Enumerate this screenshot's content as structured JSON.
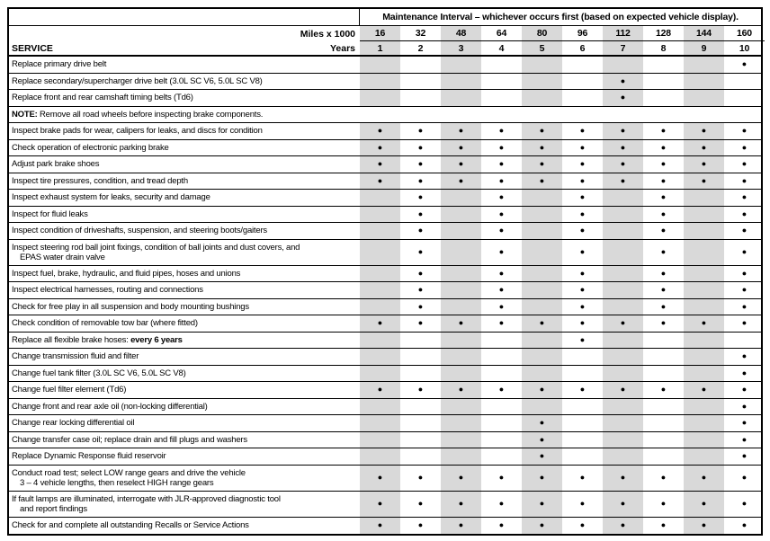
{
  "header": {
    "title": "Maintenance Interval – whichever occurs first (based on expected vehicle display).",
    "miles_label": "Miles x 1000",
    "years_label": "Years",
    "service_label": "SERVICE",
    "miles": [
      "16",
      "32",
      "48",
      "64",
      "80",
      "96",
      "112",
      "128",
      "144",
      "160"
    ],
    "years": [
      "1",
      "2",
      "3",
      "4",
      "5",
      "6",
      "7",
      "8",
      "9",
      "10"
    ]
  },
  "colors": {
    "shaded_column": "#d9d9d9",
    "border": "#000000",
    "bullet": "#000000"
  },
  "bullet_glyph": "●",
  "shaded_columns": [
    0,
    2,
    4,
    6,
    8
  ],
  "rows": [
    {
      "service": "Replace primary drive belt",
      "marks": [
        9
      ]
    },
    {
      "service": "Replace secondary/supercharger drive belt (3.0L SC V6, 5.0L SC V8)",
      "marks": [
        6
      ]
    },
    {
      "service": "Replace front and rear camshaft timing belts (Td6)",
      "marks": [
        6
      ]
    },
    {
      "note_label": "NOTE:",
      "note": " Remove all road wheels before inspecting brake components."
    },
    {
      "service": "Inspect brake pads for wear, calipers for leaks, and discs for condition",
      "marks": [
        0,
        1,
        2,
        3,
        4,
        5,
        6,
        7,
        8,
        9
      ]
    },
    {
      "service": "Check operation of electronic parking brake",
      "marks": [
        0,
        1,
        2,
        3,
        4,
        5,
        6,
        7,
        8,
        9
      ]
    },
    {
      "service": "Adjust park brake shoes",
      "marks": [
        0,
        1,
        2,
        3,
        4,
        5,
        6,
        7,
        8,
        9
      ]
    },
    {
      "service": "Inspect tire pressures, condition, and tread depth",
      "marks": [
        0,
        1,
        2,
        3,
        4,
        5,
        6,
        7,
        8,
        9
      ]
    },
    {
      "service": "Inspect exhaust system for leaks, security and damage",
      "marks": [
        1,
        3,
        5,
        7,
        9
      ]
    },
    {
      "service": "Inspect for fluid leaks",
      "marks": [
        1,
        3,
        5,
        7,
        9
      ]
    },
    {
      "service": "Inspect condition of driveshafts, suspension, and steering boots/gaiters",
      "marks": [
        1,
        3,
        5,
        7,
        9
      ]
    },
    {
      "service": "Inspect steering rod ball joint fixings, condition of ball joints and dust covers, and",
      "line2": "EPAS water drain valve",
      "marks": [
        1,
        3,
        5,
        7,
        9
      ]
    },
    {
      "service": "Inspect fuel, brake, hydraulic, and fluid pipes, hoses and unions",
      "marks": [
        1,
        3,
        5,
        7,
        9
      ]
    },
    {
      "service": "Inspect electrical harnesses, routing and connections",
      "marks": [
        1,
        3,
        5,
        7,
        9
      ]
    },
    {
      "service": "Check for free play in all suspension and body mounting bushings",
      "marks": [
        1,
        3,
        5,
        7,
        9
      ]
    },
    {
      "service": "Check condition of removable tow bar (where fitted)",
      "marks": [
        0,
        1,
        2,
        3,
        4,
        5,
        6,
        7,
        8,
        9
      ]
    },
    {
      "service": "Replace all flexible brake hoses: ",
      "bold": "every 6 years",
      "marks": [
        5
      ]
    },
    {
      "service": "Change transmission fluid and filter",
      "marks": [
        9
      ]
    },
    {
      "service": "Change fuel tank filter (3.0L SC V6, 5.0L SC V8)",
      "marks": [
        9
      ]
    },
    {
      "service": "Change fuel filter element (Td6)",
      "marks": [
        0,
        1,
        2,
        3,
        4,
        5,
        6,
        7,
        8,
        9
      ]
    },
    {
      "service": "Change front and rear axle oil (non-locking differential)",
      "marks": [
        9
      ]
    },
    {
      "service": "Change rear locking differential oil",
      "marks": [
        4,
        9
      ]
    },
    {
      "service": "Change transfer case oil; replace drain and fill plugs and washers",
      "marks": [
        4,
        9
      ]
    },
    {
      "service": "Replace Dynamic Response fluid reservoir",
      "marks": [
        4,
        9
      ]
    },
    {
      "service": "Conduct road test; select LOW range gears and drive the vehicle",
      "line2": "3 – 4 vehicle lengths, then reselect HIGH range gears",
      "marks": [
        0,
        1,
        2,
        3,
        4,
        5,
        6,
        7,
        8,
        9
      ]
    },
    {
      "service": "If fault lamps are illuminated, interrogate with JLR-approved diagnostic tool",
      "line2": "and report findings",
      "marks": [
        0,
        1,
        2,
        3,
        4,
        5,
        6,
        7,
        8,
        9
      ]
    },
    {
      "service": "Check for and complete all outstanding Recalls or Service Actions",
      "marks": [
        0,
        1,
        2,
        3,
        4,
        5,
        6,
        7,
        8,
        9
      ]
    }
  ]
}
